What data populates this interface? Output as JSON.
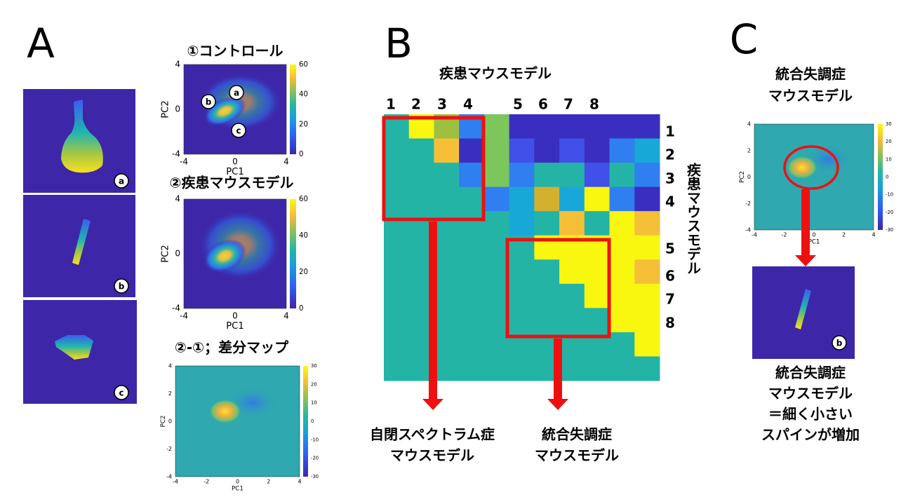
{
  "A": {
    "letter": "A",
    "spines": [
      "a",
      "b",
      "c"
    ],
    "plots": [
      {
        "title": "①コントロール",
        "xlabel": "PC1",
        "ylabel": "PC2",
        "xticks": [
          -4,
          0,
          4
        ],
        "yticks": [
          -4,
          0,
          4
        ],
        "colorbar": [
          0,
          20,
          40,
          60
        ],
        "markers": [
          "a",
          "b",
          "c"
        ]
      },
      {
        "title": "②疾患マウスモデル",
        "xlabel": "PC1",
        "ylabel": "PC2",
        "xticks": [
          -4,
          0,
          4
        ],
        "yticks": [
          -4,
          0,
          4
        ],
        "colorbar": [
          0,
          20,
          40,
          60
        ]
      },
      {
        "title": "②-①；差分マップ",
        "xlabel": "PC1",
        "ylabel": "PC2",
        "xticks": [
          -4,
          -2,
          0,
          2,
          4
        ],
        "yticks": [
          -4,
          -2,
          0,
          2,
          4
        ],
        "colorbar": [
          -30,
          -20,
          -10,
          0,
          10,
          20,
          30
        ]
      }
    ]
  },
  "B": {
    "letter": "B",
    "top_title": "疾患マウスモデル",
    "top_numbers": [
      1,
      2,
      3,
      4,
      5,
      6,
      7,
      8
    ],
    "side_numbers": [
      1,
      2,
      3,
      4,
      5,
      6,
      7,
      8
    ],
    "side_title": "疾患マウスモデル",
    "left_label": [
      "自閉スペクトラム症",
      "マウスモデル"
    ],
    "right_label": [
      "統合失調症",
      "マウスモデル"
    ]
  },
  "C": {
    "letter": "C",
    "title": [
      "統合失調症",
      "マウスモデル"
    ],
    "plot": {
      "xlabel": "PC1",
      "ylabel": "PC2",
      "xticks": [
        -4,
        -2,
        0,
        2,
        4
      ],
      "yticks": [
        -4,
        -2,
        0,
        2,
        4
      ],
      "colorbar": [
        -30,
        -20,
        -10,
        0,
        10,
        20,
        30
      ]
    },
    "spine": "b",
    "caption": [
      "統合失調症",
      "マウスモデル",
      "＝細く小さい",
      "スパインが増加"
    ]
  }
}
